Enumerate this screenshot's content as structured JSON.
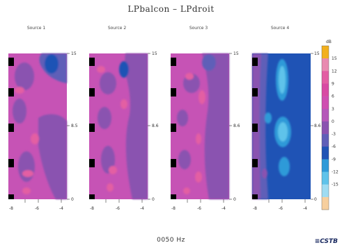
{
  "chart_data": {
    "type": "heatmap",
    "title": "LPbalcon – LPdroit",
    "frequency_label": "0050 Hz",
    "unit": "dB",
    "logo": "CSTB",
    "colorbar": {
      "ticks": [
        15,
        12,
        9,
        6,
        3,
        0,
        -3,
        -6,
        -9,
        -12,
        -15
      ],
      "colors": [
        "#f2b01e",
        "#e88ab0",
        "#e35ea3",
        "#d84aa3",
        "#cf4fb1",
        "#b557b9",
        "#8a52b0",
        "#5f5fb8",
        "#1f53b5",
        "#2e9ad8",
        "#5fc3ea",
        "#9fdcf2",
        "#f7cf9e"
      ]
    },
    "panels": [
      {
        "name": "Source 1",
        "y_ticks": [
          "15",
          "8.5",
          "0"
        ],
        "x_ticks": [
          "-8",
          "-6",
          "-4"
        ]
      },
      {
        "name": "Source 2",
        "y_ticks": [
          "15",
          "8.6",
          "0"
        ],
        "x_ticks": [
          "-8",
          "-6",
          "-4"
        ]
      },
      {
        "name": "Source 3",
        "y_ticks": [
          "15",
          "8.6",
          "0"
        ],
        "x_ticks": [
          "-8",
          "-6",
          "-4"
        ]
      },
      {
        "name": "Source 4",
        "y_ticks": [
          "15",
          "8.6",
          "0"
        ],
        "x_ticks": [
          "-8",
          "-6",
          "-4"
        ]
      }
    ]
  }
}
